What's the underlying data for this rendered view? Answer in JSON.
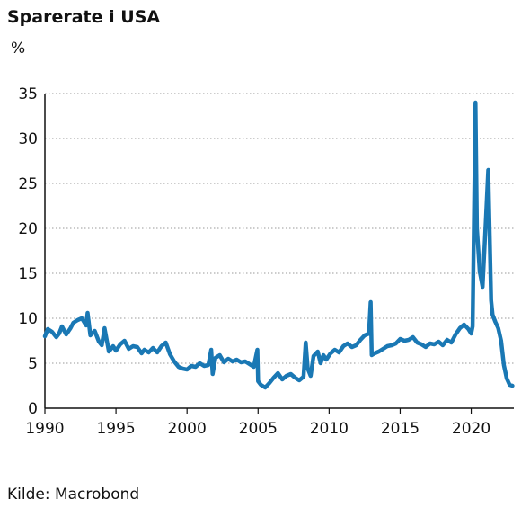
{
  "chart_data": {
    "type": "line",
    "title": "Sparerate i USA",
    "ylabel": "%",
    "source": "Kilde: Macrobond",
    "ylim": [
      0,
      35
    ],
    "xlim": [
      1990,
      2023
    ],
    "yticks": [
      "0",
      "5",
      "10",
      "15",
      "20",
      "25",
      "30",
      "35"
    ],
    "xticks": [
      "1990",
      "1995",
      "2000",
      "2005",
      "2010",
      "2015",
      "2020"
    ],
    "grid": "horizontal dotted",
    "line_color": "#1a78b4",
    "series": [
      {
        "x": [
          1990.0,
          1990.2,
          1990.5,
          1990.8,
          1991.0,
          1991.2,
          1991.5,
          1991.8,
          1992.0,
          1992.3,
          1992.6,
          1992.9,
          1993.0,
          1993.2,
          1993.5,
          1993.8,
          1994.0,
          1994.2,
          1994.5,
          1994.8,
          1995.0,
          1995.3,
          1995.6,
          1995.9,
          1996.2,
          1996.5,
          1996.8,
          1997.0,
          1997.3,
          1997.6,
          1997.9,
          1998.2,
          1998.5,
          1998.8,
          1999.1,
          1999.4,
          1999.7,
          2000.0,
          2000.3,
          2000.6,
          2000.9,
          2001.2,
          2001.5,
          2001.7,
          2001.8,
          2002.0,
          2002.3,
          2002.6,
          2002.9,
          2003.2,
          2003.5,
          2003.8,
          2004.1,
          2004.4,
          2004.7,
          2004.95,
          2005.0,
          2005.2,
          2005.5,
          2005.8,
          2006.1,
          2006.4,
          2006.7,
          2007.0,
          2007.3,
          2007.6,
          2007.9,
          2008.2,
          2008.35,
          2008.5,
          2008.7,
          2008.9,
          2009.2,
          2009.4,
          2009.6,
          2009.8,
          2010.1,
          2010.4,
          2010.7,
          2011.0,
          2011.3,
          2011.6,
          2011.9,
          2012.2,
          2012.5,
          2012.8,
          2012.92,
          2013.0,
          2013.2,
          2013.5,
          2013.8,
          2014.1,
          2014.4,
          2014.7,
          2015.0,
          2015.3,
          2015.6,
          2015.9,
          2016.2,
          2016.5,
          2016.8,
          2017.1,
          2017.4,
          2017.7,
          2018.0,
          2018.3,
          2018.6,
          2018.9,
          2019.2,
          2019.5,
          2019.8,
          2020.0,
          2020.1,
          2020.3,
          2020.4,
          2020.6,
          2020.8,
          2021.0,
          2021.2,
          2021.4,
          2021.5,
          2021.7,
          2021.9,
          2022.1,
          2022.3,
          2022.5,
          2022.7,
          2022.9
        ],
        "y": [
          8.0,
          8.8,
          8.5,
          7.9,
          8.3,
          9.1,
          8.2,
          8.9,
          9.5,
          9.8,
          10.0,
          9.2,
          10.6,
          8.1,
          8.6,
          7.4,
          7.0,
          8.9,
          6.3,
          6.9,
          6.4,
          7.1,
          7.5,
          6.6,
          6.9,
          6.8,
          6.1,
          6.5,
          6.2,
          6.7,
          6.2,
          6.9,
          7.3,
          6.0,
          5.2,
          4.6,
          4.4,
          4.3,
          4.7,
          4.6,
          5.0,
          4.7,
          4.8,
          6.5,
          3.8,
          5.6,
          5.9,
          5.1,
          5.5,
          5.2,
          5.4,
          5.1,
          5.2,
          4.9,
          4.6,
          6.5,
          3.0,
          2.6,
          2.3,
          2.8,
          3.4,
          3.9,
          3.2,
          3.6,
          3.8,
          3.4,
          3.1,
          3.5,
          7.3,
          4.4,
          3.6,
          5.8,
          6.3,
          5.0,
          5.9,
          5.4,
          6.1,
          6.5,
          6.2,
          6.9,
          7.2,
          6.8,
          7.0,
          7.6,
          8.1,
          8.3,
          11.8,
          5.9,
          6.1,
          6.3,
          6.6,
          6.9,
          7.0,
          7.2,
          7.7,
          7.5,
          7.6,
          7.9,
          7.3,
          7.1,
          6.8,
          7.2,
          7.1,
          7.4,
          7.0,
          7.6,
          7.3,
          8.2,
          8.9,
          9.3,
          8.8,
          8.3,
          9.1,
          34.0,
          20.0,
          15.2,
          13.5,
          20.0,
          26.5,
          12.0,
          10.4,
          9.6,
          8.9,
          7.5,
          4.8,
          3.3,
          2.6,
          2.5
        ]
      }
    ]
  }
}
